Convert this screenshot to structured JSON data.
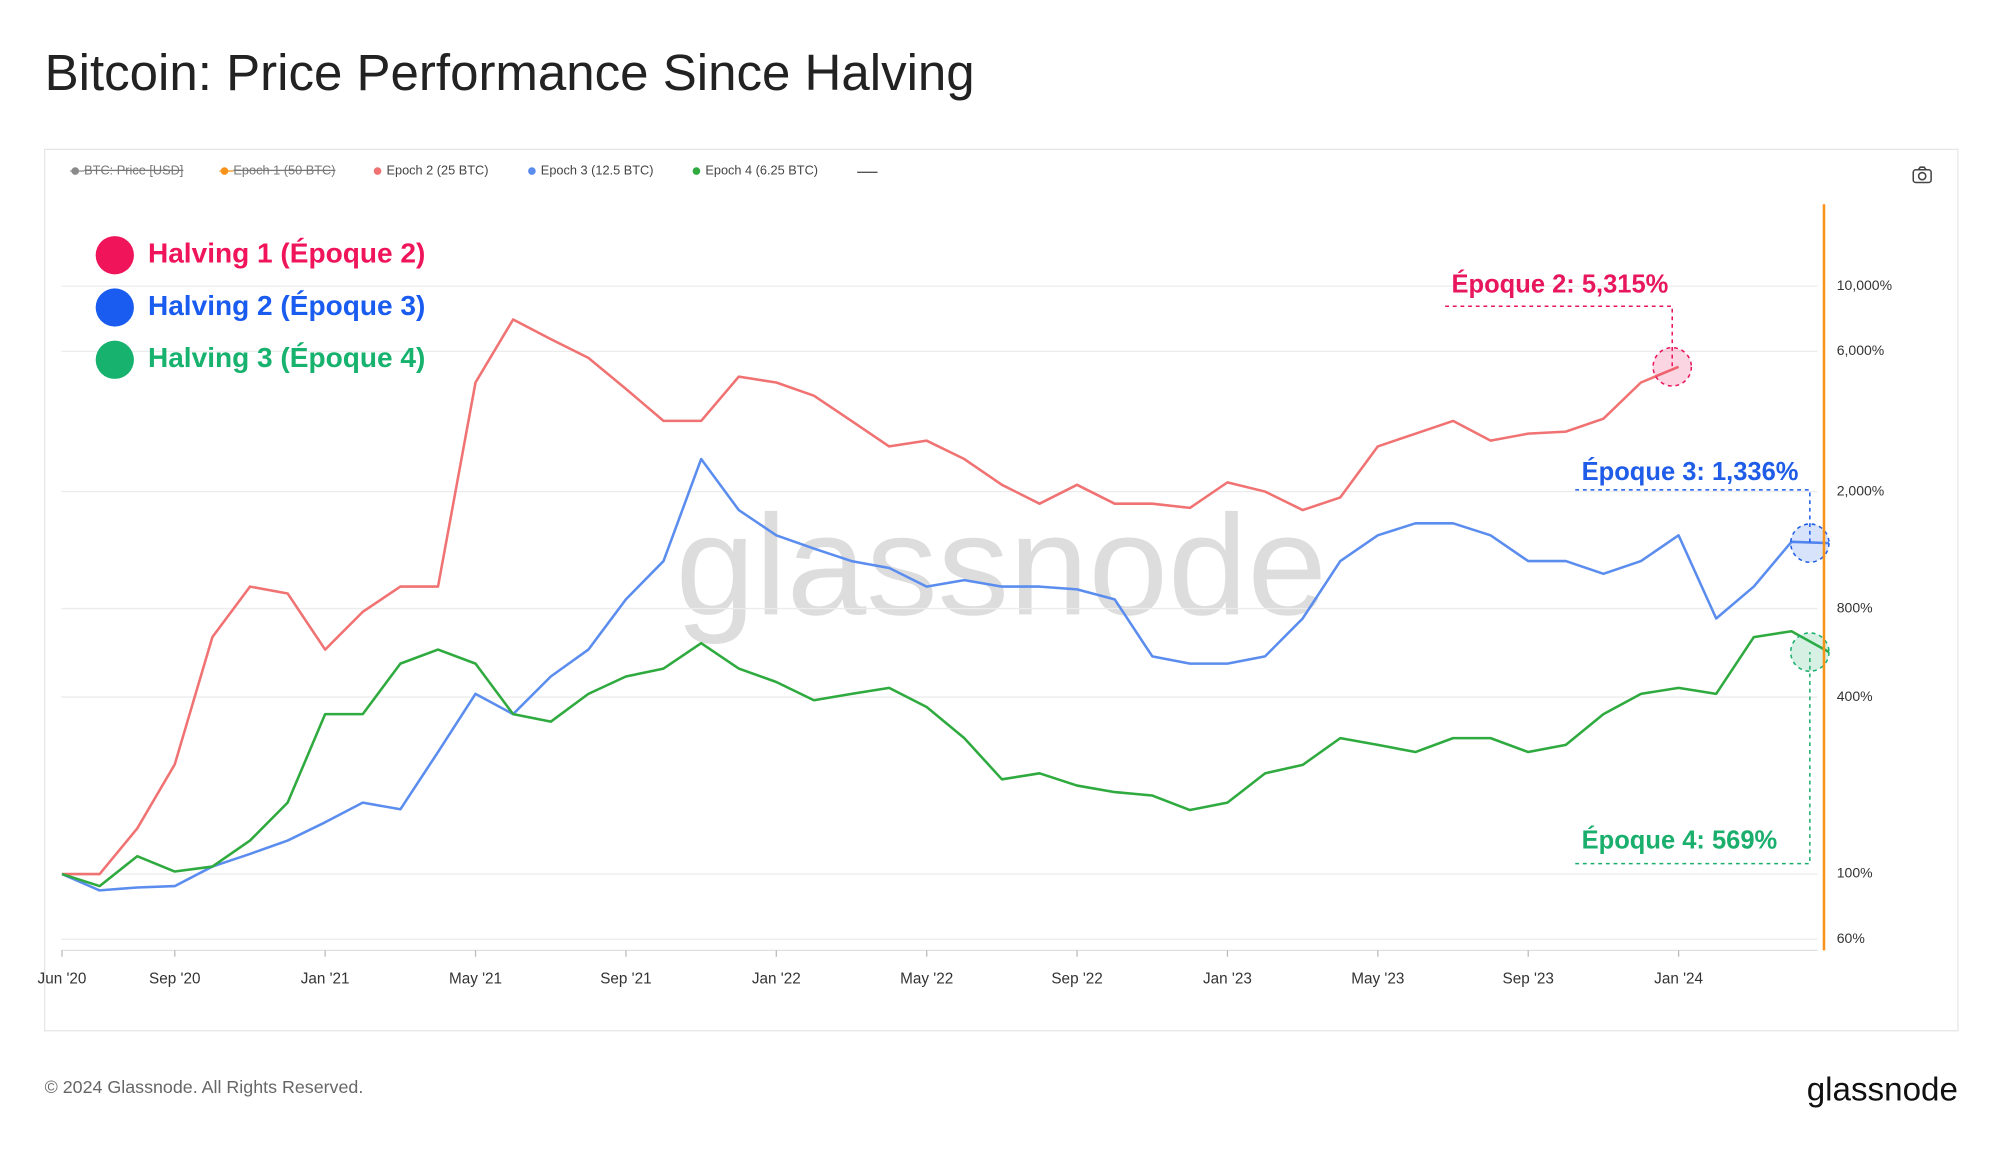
{
  "chart_data": {
    "type": "line",
    "title": "Bitcoin: Price Performance Since Halving",
    "log_scale": true,
    "grid": true,
    "categories": [
      "Jun '20",
      null,
      null,
      "Sep '20",
      null,
      null,
      null,
      "Jan '21",
      null,
      null,
      null,
      "May '21",
      null,
      null,
      null,
      "Sep '21",
      null,
      null,
      null,
      "Jan '22",
      null,
      null,
      null,
      "May '22",
      null,
      null,
      null,
      "Sep '22",
      null,
      null,
      null,
      "Jan '23",
      null,
      null,
      null,
      "May '23",
      null,
      null,
      null,
      "Sep '23",
      null,
      null,
      null,
      "Jan '24",
      null,
      null,
      null,
      null
    ],
    "hidden_series": [
      {
        "name": "BTC: Price [USD]",
        "color": "#8a8a8a"
      },
      {
        "name": "Epoch 1 (50 BTC)",
        "color": "#f7931a"
      }
    ],
    "series": [
      {
        "name": "Epoch 2 (25 BTC)",
        "color": "#f07272",
        "values": [
          100,
          100,
          143,
          236,
          640,
          950,
          900,
          580,
          780,
          950,
          950,
          4700,
          7700,
          6600,
          5700,
          4470,
          3480,
          3480,
          4920,
          4700,
          4240,
          3480,
          2850,
          2980,
          2580,
          2110,
          1820,
          2110,
          1820,
          1820,
          1760,
          2150,
          2000,
          1730,
          1910,
          2850,
          3150,
          3480,
          2980,
          3150,
          3200,
          3540,
          4700,
          5315,
          null,
          null,
          null,
          null
        ]
      },
      {
        "name": "Epoch 3 (12.5 BTC)",
        "color": "#5b8def",
        "values": [
          100,
          88,
          90,
          91,
          106,
          117,
          130,
          150,
          175,
          166,
          260,
          410,
          350,
          470,
          580,
          860,
          1160,
          2580,
          1730,
          1420,
          1280,
          1160,
          1100,
          950,
          1000,
          950,
          950,
          930,
          860,
          550,
          520,
          520,
          550,
          740,
          1160,
          1420,
          1560,
          1560,
          1420,
          1160,
          1160,
          1050,
          1160,
          1420,
          740,
          950,
          1350,
          1336
        ]
      },
      {
        "name": "Epoch 4 (6.25 BTC)",
        "color": "#2faa3f",
        "values": [
          100,
          91,
          115,
          102,
          106,
          130,
          175,
          350,
          350,
          520,
          580,
          520,
          350,
          330,
          410,
          470,
          500,
          610,
          500,
          450,
          390,
          410,
          430,
          370,
          290,
          210,
          220,
          200,
          190,
          185,
          165,
          175,
          220,
          235,
          290,
          275,
          260,
          290,
          290,
          260,
          275,
          350,
          410,
          430,
          410,
          640,
          670,
          569
        ]
      }
    ],
    "ylim": [
      55,
      19000
    ],
    "yticks": [
      {
        "value": 60,
        "label": "60%"
      },
      {
        "value": 100,
        "label": "100%"
      },
      {
        "value": 400,
        "label": "400%"
      },
      {
        "value": 800,
        "label": "800%"
      },
      {
        "value": 2000,
        "label": "2,000%"
      },
      {
        "value": 6000,
        "label": "6,000%"
      },
      {
        "value": 10000,
        "label": "10,000%"
      }
    ],
    "halving_labels": [
      {
        "text": "Halving 1 (Époque 2)",
        "color": "#f0145a"
      },
      {
        "text": "Halving 2 (Époque 3)",
        "color": "#1a5cf0"
      },
      {
        "text": "Halving 3 (Époque 4)",
        "color": "#16b26e"
      }
    ],
    "annotations": [
      {
        "text": "Époque 2: 5,315%",
        "color": "#e8175d"
      },
      {
        "text": "Époque 3: 1,336%",
        "color": "#1f5ce8"
      },
      {
        "text": "Époque 4: 569%",
        "color": "#1aaf6c"
      }
    ],
    "watermark": "glassnode",
    "footer": "© 2024 Glassnode. All Rights Reserved.",
    "logo": "glassnode"
  }
}
